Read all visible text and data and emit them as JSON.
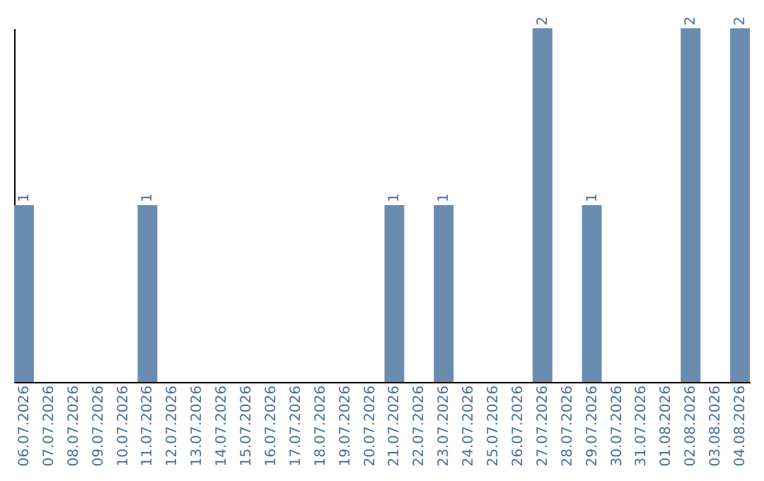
{
  "chart_data": {
    "type": "bar",
    "categories": [
      "06.07.2026",
      "07.07.2026",
      "08.07.2026",
      "09.07.2026",
      "10.07.2026",
      "11.07.2026",
      "12.07.2026",
      "13.07.2026",
      "14.07.2026",
      "15.07.2026",
      "16.07.2026",
      "17.07.2026",
      "18.07.2026",
      "19.07.2026",
      "20.07.2026",
      "21.07.2026",
      "22.07.2026",
      "23.07.2026",
      "24.07.2026",
      "25.07.2026",
      "26.07.2026",
      "27.07.2026",
      "28.07.2026",
      "29.07.2026",
      "30.07.2026",
      "31.07.2026",
      "01.08.2026",
      "02.08.2026",
      "03.08.2026",
      "04.08.2026"
    ],
    "values": [
      1,
      0,
      0,
      0,
      0,
      1,
      0,
      0,
      0,
      0,
      0,
      0,
      0,
      0,
      0,
      1,
      0,
      1,
      0,
      0,
      0,
      2,
      0,
      1,
      0,
      0,
      0,
      2,
      0,
      2
    ],
    "value_labels": [
      "1",
      null,
      null,
      null,
      null,
      "1",
      null,
      null,
      null,
      null,
      null,
      null,
      null,
      null,
      null,
      "1",
      null,
      "1",
      null,
      null,
      null,
      "2",
      null,
      "1",
      null,
      null,
      null,
      "2",
      null,
      "2"
    ],
    "color": "#6a8caf",
    "ylim": [
      0,
      2
    ],
    "tick_labels": "x",
    "grid": false
  }
}
